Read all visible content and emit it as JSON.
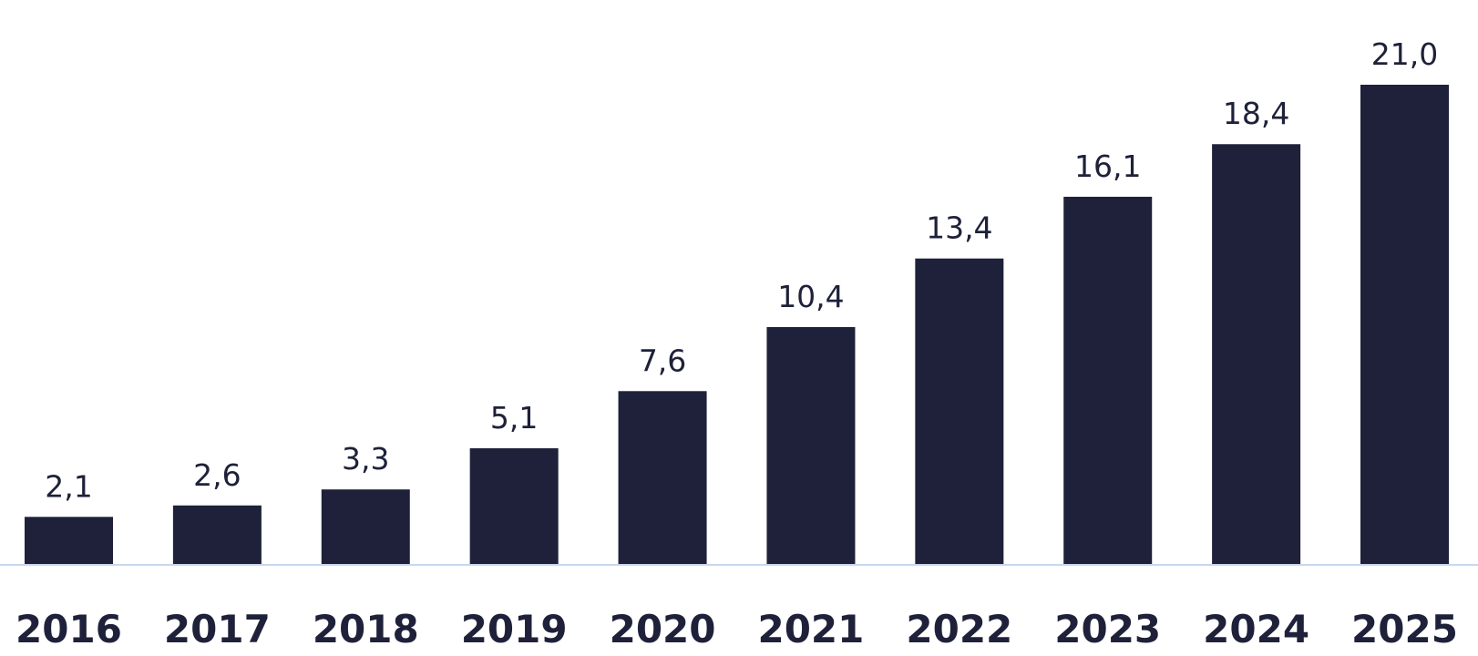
{
  "chart_data": {
    "type": "bar",
    "categories": [
      "2016",
      "2017",
      "2018",
      "2019",
      "2020",
      "2021",
      "2022",
      "2023",
      "2024",
      "2025"
    ],
    "values": [
      2.1,
      2.6,
      3.3,
      5.1,
      7.6,
      10.4,
      13.4,
      16.1,
      18.4,
      21.0
    ],
    "value_labels": [
      "2,1",
      "2,6",
      "3,3",
      "5,1",
      "7,6",
      "10,4",
      "13,4",
      "16,1",
      "18,4",
      "21,0"
    ],
    "title": "",
    "xlabel": "",
    "ylabel": "",
    "ylim": [
      0,
      21.0
    ],
    "grid": false,
    "legend": "none",
    "bar_color": "#1e2139",
    "baseline_color": "#c9d7ef"
  }
}
